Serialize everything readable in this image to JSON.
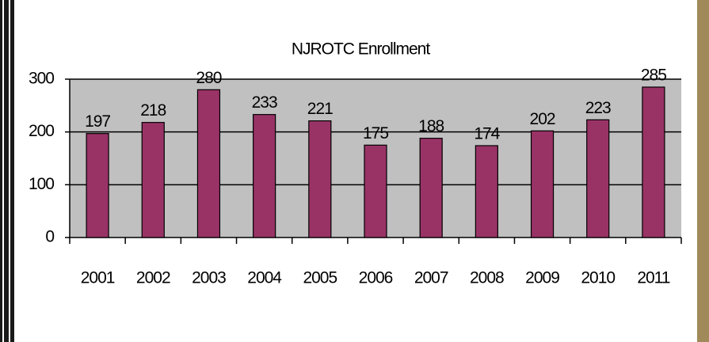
{
  "chart_data": {
    "type": "bar",
    "title": "NJROTC Enrollment",
    "categories": [
      "2001",
      "2002",
      "2003",
      "2004",
      "2005",
      "2006",
      "2007",
      "2008",
      "2009",
      "2010",
      "2011"
    ],
    "values": [
      197,
      218,
      280,
      233,
      221,
      175,
      188,
      174,
      202,
      223,
      285
    ],
    "color": "#993366",
    "ylim": [
      0,
      300
    ],
    "yticks": [
      0,
      100,
      200,
      300
    ],
    "grid": true
  }
}
